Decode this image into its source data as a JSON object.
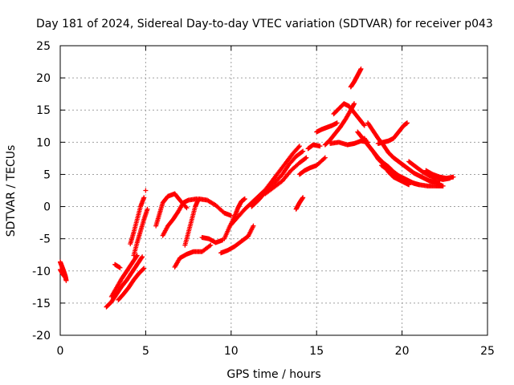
{
  "chart_data": {
    "type": "scatter",
    "title": "Day 181 of 2024, Sidereal Day-to-day VTEC variation (SDTVAR) for receiver p043",
    "xlabel": "GPS time / hours",
    "ylabel": "SDTVAR / TECUs",
    "xlim": [
      0,
      25
    ],
    "ylim": [
      -20,
      25
    ],
    "xticks": [
      0,
      5,
      10,
      15,
      20,
      25
    ],
    "yticks": [
      -20,
      -15,
      -10,
      -5,
      0,
      5,
      10,
      15,
      20,
      25
    ],
    "grid": true,
    "marker": "+",
    "color": "#ff0000",
    "series": [
      {
        "name": "SDTVAR",
        "segments": [
          [
            [
              0.0,
              -8.6
            ],
            [
              0.1,
              -9.3
            ],
            [
              0.2,
              -10.0
            ],
            [
              0.3,
              -10.8
            ],
            [
              0.35,
              -11.5
            ]
          ],
          [
            [
              0.0,
              -9.8
            ],
            [
              0.15,
              -10.5
            ],
            [
              0.3,
              -11.0
            ]
          ],
          [
            [
              2.7,
              -15.6
            ],
            [
              3.0,
              -14.8
            ],
            [
              3.3,
              -13.6
            ],
            [
              3.6,
              -12.4
            ],
            [
              3.9,
              -11.4
            ],
            [
              4.2,
              -10.2
            ],
            [
              4.5,
              -9.0
            ],
            [
              4.8,
              -7.8
            ]
          ],
          [
            [
              3.0,
              -14.0
            ],
            [
              3.3,
              -12.6
            ],
            [
              3.6,
              -11.2
            ],
            [
              3.9,
              -10.0
            ],
            [
              4.2,
              -8.8
            ],
            [
              4.5,
              -7.6
            ]
          ],
          [
            [
              3.4,
              -14.5
            ],
            [
              3.7,
              -13.6
            ],
            [
              4.0,
              -12.6
            ],
            [
              4.3,
              -11.4
            ],
            [
              4.6,
              -10.4
            ],
            [
              4.9,
              -9.6
            ]
          ],
          [
            [
              3.2,
              -9.0
            ],
            [
              3.5,
              -9.5
            ]
          ],
          [
            [
              4.1,
              -5.8
            ],
            [
              4.3,
              -4.0
            ],
            [
              4.5,
              -2.0
            ],
            [
              4.7,
              0.0
            ],
            [
              4.9,
              1.4
            ]
          ],
          [
            [
              4.3,
              -7.6
            ],
            [
              4.5,
              -5.6
            ],
            [
              4.7,
              -3.8
            ],
            [
              4.9,
              -2.0
            ],
            [
              5.1,
              -0.4
            ]
          ],
          [
            [
              5.0,
              2.5
            ]
          ],
          [
            [
              5.6,
              -3.0
            ],
            [
              5.8,
              -1.2
            ],
            [
              6.0,
              0.6
            ],
            [
              6.3,
              1.6
            ],
            [
              6.7,
              2.0
            ],
            [
              7.0,
              1.0
            ],
            [
              7.4,
              -0.2
            ]
          ],
          [
            [
              6.0,
              -4.5
            ],
            [
              6.3,
              -3.0
            ],
            [
              6.6,
              -2.0
            ],
            [
              6.9,
              -0.8
            ],
            [
              7.2,
              0.6
            ],
            [
              7.5,
              1.0
            ],
            [
              8.0,
              1.2
            ]
          ],
          [
            [
              6.7,
              -9.4
            ],
            [
              7.0,
              -8.0
            ],
            [
              7.4,
              -7.4
            ],
            [
              7.8,
              -7.0
            ],
            [
              8.3,
              -7.0
            ],
            [
              8.8,
              -6.0
            ]
          ],
          [
            [
              7.3,
              -6.0
            ],
            [
              7.5,
              -4.0
            ],
            [
              7.7,
              -2.0
            ],
            [
              7.9,
              0.0
            ],
            [
              8.1,
              1.2
            ],
            [
              8.6,
              1.0
            ],
            [
              9.1,
              0.2
            ],
            [
              9.6,
              -1.0
            ],
            [
              10.0,
              -1.4
            ]
          ],
          [
            [
              8.3,
              -4.8
            ],
            [
              8.7,
              -5.0
            ],
            [
              9.1,
              -5.6
            ],
            [
              9.5,
              -5.2
            ]
          ],
          [
            [
              9.6,
              -5.0
            ],
            [
              9.9,
              -3.2
            ],
            [
              10.2,
              -1.6
            ],
            [
              10.4,
              -0.2
            ],
            [
              10.6,
              0.8
            ],
            [
              10.8,
              1.2
            ]
          ],
          [
            [
              9.4,
              -7.2
            ],
            [
              9.8,
              -6.8
            ],
            [
              10.2,
              -6.2
            ],
            [
              10.6,
              -5.4
            ],
            [
              11.0,
              -4.6
            ],
            [
              11.3,
              -3.0
            ]
          ],
          [
            [
              10.0,
              -2.8
            ],
            [
              10.4,
              -1.6
            ],
            [
              10.8,
              -0.4
            ],
            [
              11.2,
              0.6
            ],
            [
              11.6,
              1.6
            ],
            [
              12.0,
              2.6
            ],
            [
              12.4,
              4.0
            ],
            [
              12.8,
              5.4
            ],
            [
              13.2,
              6.8
            ],
            [
              13.6,
              8.2
            ],
            [
              14.0,
              9.4
            ]
          ],
          [
            [
              11.2,
              0.0
            ],
            [
              11.6,
              1.0
            ],
            [
              12.0,
              2.2
            ],
            [
              12.5,
              3.6
            ],
            [
              13.0,
              5.0
            ],
            [
              13.4,
              6.6
            ],
            [
              13.8,
              7.8
            ],
            [
              14.2,
              8.6
            ]
          ],
          [
            [
              12.0,
              2.0
            ],
            [
              12.5,
              3.0
            ],
            [
              13.0,
              4.0
            ],
            [
              13.5,
              5.6
            ],
            [
              14.0,
              6.8
            ],
            [
              14.4,
              7.6
            ]
          ],
          [
            [
              13.8,
              -0.4
            ],
            [
              14.0,
              0.6
            ],
            [
              14.2,
              1.4
            ]
          ],
          [
            [
              14.0,
              5.0
            ],
            [
              14.3,
              5.6
            ],
            [
              14.6,
              6.0
            ],
            [
              15.0,
              6.4
            ],
            [
              15.5,
              7.6
            ]
          ],
          [
            [
              14.5,
              9.0
            ],
            [
              14.8,
              9.6
            ],
            [
              15.2,
              9.4
            ]
          ],
          [
            [
              15.0,
              11.6
            ],
            [
              15.3,
              12.0
            ],
            [
              15.6,
              12.3
            ],
            [
              15.9,
              12.6
            ],
            [
              16.2,
              13.0
            ]
          ],
          [
            [
              15.5,
              9.6
            ],
            [
              15.8,
              10.4
            ],
            [
              16.1,
              11.4
            ],
            [
              16.4,
              12.4
            ],
            [
              16.7,
              13.6
            ],
            [
              17.0,
              15.0
            ],
            [
              17.2,
              16.0
            ]
          ],
          [
            [
              16.0,
              14.4
            ],
            [
              16.3,
              15.2
            ],
            [
              16.6,
              16.0
            ],
            [
              16.9,
              15.6
            ],
            [
              17.2,
              14.6
            ],
            [
              17.5,
              13.6
            ],
            [
              17.8,
              12.6
            ]
          ],
          [
            [
              15.8,
              9.8
            ],
            [
              16.3,
              10.0
            ],
            [
              16.8,
              9.6
            ],
            [
              17.2,
              9.8
            ],
            [
              17.6,
              10.2
            ],
            [
              18.0,
              10.0
            ]
          ],
          [
            [
              17.0,
              18.6
            ],
            [
              17.2,
              19.4
            ],
            [
              17.4,
              20.4
            ],
            [
              17.6,
              21.4
            ]
          ],
          [
            [
              17.8,
              10.6
            ],
            [
              18.0,
              9.6
            ],
            [
              18.3,
              8.6
            ],
            [
              18.6,
              7.4
            ],
            [
              18.9,
              6.6
            ],
            [
              19.2,
              5.4
            ],
            [
              19.5,
              4.6
            ],
            [
              19.8,
              4.2
            ],
            [
              20.1,
              3.8
            ],
            [
              20.4,
              3.4
            ]
          ],
          [
            [
              17.4,
              11.6
            ],
            [
              17.7,
              10.6
            ],
            [
              18.0,
              9.6
            ],
            [
              18.3,
              8.6
            ],
            [
              18.6,
              7.6
            ],
            [
              18.9,
              6.8
            ],
            [
              19.2,
              6.2
            ],
            [
              19.5,
              5.4
            ],
            [
              19.8,
              4.8
            ],
            [
              20.1,
              4.4
            ],
            [
              20.4,
              4.0
            ],
            [
              20.7,
              3.6
            ],
            [
              21.0,
              3.4
            ]
          ],
          [
            [
              18.0,
              13.0
            ],
            [
              18.3,
              11.8
            ],
            [
              18.6,
              10.6
            ],
            [
              18.9,
              9.6
            ],
            [
              19.2,
              8.4
            ],
            [
              19.5,
              7.6
            ],
            [
              19.8,
              7.0
            ],
            [
              20.1,
              6.4
            ],
            [
              20.4,
              5.8
            ],
            [
              20.7,
              5.2
            ],
            [
              21.0,
              4.8
            ],
            [
              21.3,
              4.4
            ],
            [
              21.6,
              4.0
            ],
            [
              21.9,
              3.8
            ],
            [
              22.2,
              3.6
            ]
          ],
          [
            [
              18.6,
              9.8
            ],
            [
              18.9,
              10.0
            ],
            [
              19.2,
              10.2
            ],
            [
              19.5,
              10.6
            ],
            [
              19.8,
              11.6
            ],
            [
              20.1,
              12.6
            ],
            [
              20.3,
              13.0
            ]
          ],
          [
            [
              18.8,
              6.4
            ],
            [
              19.2,
              5.6
            ],
            [
              19.6,
              5.0
            ],
            [
              20.0,
              4.4
            ],
            [
              20.5,
              3.8
            ],
            [
              21.0,
              3.4
            ],
            [
              21.5,
              3.2
            ],
            [
              22.0,
              3.2
            ],
            [
              22.4,
              3.2
            ]
          ],
          [
            [
              20.4,
              7.0
            ],
            [
              20.8,
              6.2
            ],
            [
              21.2,
              5.4
            ],
            [
              21.6,
              4.8
            ],
            [
              22.0,
              4.4
            ],
            [
              22.4,
              4.2
            ],
            [
              22.8,
              4.4
            ]
          ],
          [
            [
              21.4,
              5.6
            ],
            [
              21.8,
              5.0
            ],
            [
              22.2,
              4.6
            ],
            [
              22.6,
              4.4
            ],
            [
              23.0,
              4.6
            ]
          ]
        ]
      }
    ]
  }
}
